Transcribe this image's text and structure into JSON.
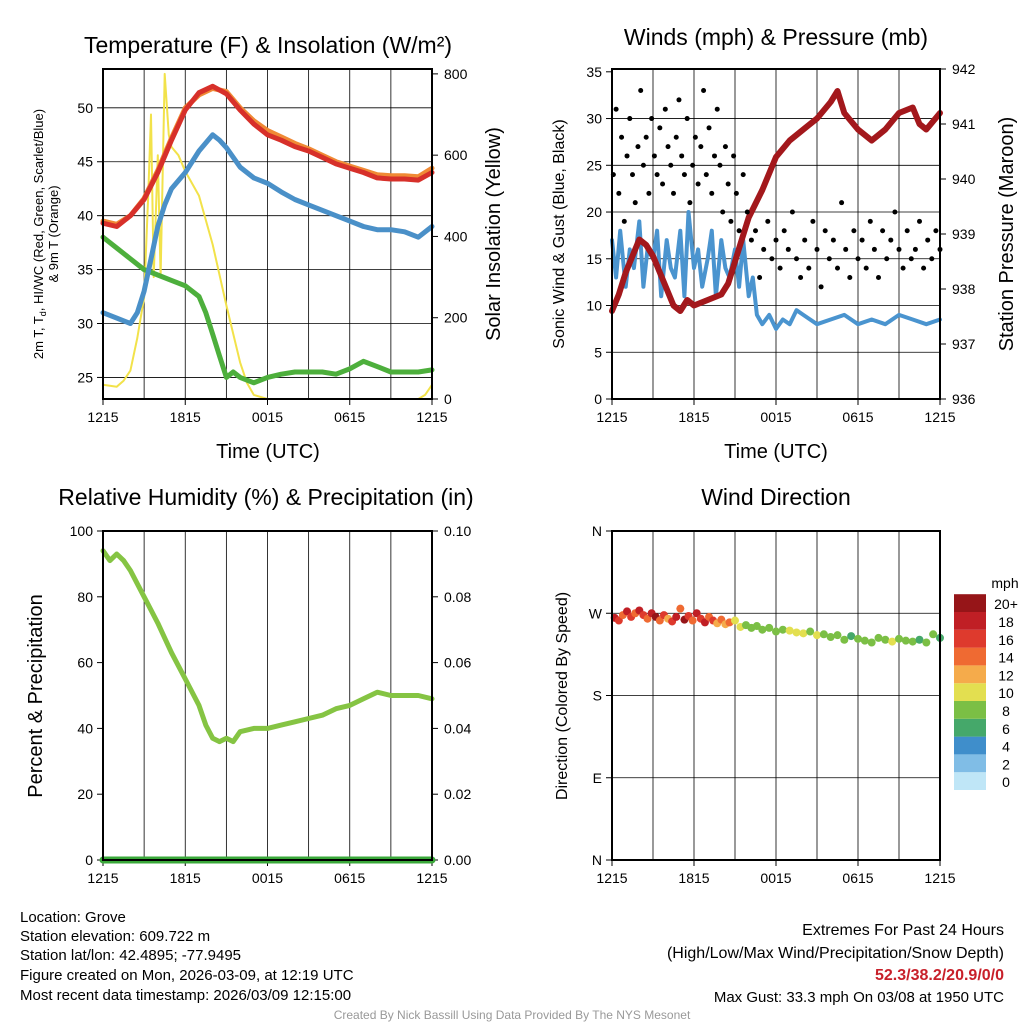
{
  "chart_data": [
    {
      "type": "line",
      "title": "Temperature (F) & Insolation (W/m²)",
      "xlabel": "Time (UTC)",
      "ylabel_parts": [
        "2m T, T",
        "d",
        ", HI/WC (Red, Green, Scarlet/Blue)"
      ],
      "ylabel2": "& 9m T (Orange)",
      "y2label": "Solar Insolation (Yellow)",
      "ylim": [
        23,
        53.6
      ],
      "y2lim": [
        0,
        812
      ],
      "yticks": [
        25,
        30,
        35,
        40,
        45,
        50
      ],
      "y2ticks": [
        0,
        200,
        400,
        600,
        800
      ],
      "xticks": [
        "1215",
        "1815",
        "0015",
        "0615",
        "1215"
      ],
      "series": [
        {
          "name": "Solar Insolation",
          "axis": "right",
          "color": "#f2e24a",
          "w": 2,
          "x": [
            0,
            1,
            1.5,
            2,
            2.5,
            3,
            3.3,
            3.5,
            3.7,
            4,
            4.2,
            4.5,
            4.8,
            5,
            5.5,
            6,
            7,
            8,
            9,
            10,
            10.5,
            11,
            12,
            18,
            23,
            23.5,
            24
          ],
          "y": [
            35,
            30,
            45,
            70,
            150,
            250,
            500,
            700,
            300,
            600,
            300,
            800,
            650,
            620,
            600,
            560,
            500,
            380,
            230,
            90,
            40,
            10,
            0,
            0,
            0,
            10,
            35
          ]
        },
        {
          "name": "Dew Point",
          "axis": "left",
          "color": "#4daf3c",
          "w": 5,
          "x": [
            0,
            1,
            2,
            3,
            4,
            5,
            6,
            7,
            7.5,
            8,
            8.5,
            9,
            9.5,
            10,
            11,
            12,
            13,
            14,
            15,
            16,
            17,
            18,
            19,
            20,
            21,
            22,
            23,
            24
          ],
          "y": [
            38,
            37,
            36,
            35,
            34.5,
            34,
            33.5,
            32.5,
            31,
            29,
            27,
            25,
            25.5,
            25,
            24.5,
            25,
            25.3,
            25.5,
            25.5,
            25.5,
            25.3,
            25.8,
            26.5,
            26,
            25.5,
            25.5,
            25.5,
            25.7
          ]
        },
        {
          "name": "Heat Index / Wind Chill",
          "axis": "left",
          "color": "#4a90c8",
          "w": 5,
          "x": [
            0,
            1,
            2,
            2.5,
            3,
            3.5,
            4,
            4.5,
            5,
            6,
            7,
            8,
            8.5,
            9,
            10,
            11,
            12,
            13,
            14,
            15,
            16,
            17,
            18,
            19,
            20,
            21,
            22,
            23,
            24
          ],
          "y": [
            31,
            30.5,
            30,
            31,
            33,
            36,
            39,
            41,
            42.5,
            44,
            46,
            47.5,
            47,
            46.3,
            44.5,
            43.5,
            43,
            42.2,
            41.5,
            41,
            40.5,
            40,
            39.5,
            39,
            38.7,
            38.7,
            38.5,
            38,
            39
          ]
        },
        {
          "name": "9m Temperature",
          "axis": "left",
          "color": "#f08a35",
          "w": 5,
          "x": [
            0,
            1,
            2,
            3,
            4,
            5,
            6,
            7,
            8,
            9,
            10,
            11,
            12,
            13,
            14,
            15,
            16,
            17,
            18,
            19,
            20,
            21,
            22,
            23,
            24
          ],
          "y": [
            39.5,
            39.2,
            40,
            41.6,
            44.2,
            47.2,
            50,
            51.2,
            51.8,
            51.5,
            50,
            48.8,
            47.9,
            47.3,
            46.7,
            46.2,
            45.6,
            45,
            44.6,
            44.2,
            43.8,
            43.7,
            43.7,
            43.6,
            44.4
          ]
        },
        {
          "name": "2m Temperature",
          "axis": "left",
          "color": "#d7302a",
          "w": 5,
          "x": [
            0,
            1,
            2,
            3,
            4,
            5,
            6,
            7,
            8,
            9,
            10,
            11,
            12,
            13,
            14,
            15,
            16,
            17,
            18,
            19,
            20,
            21,
            22,
            23,
            24
          ],
          "y": [
            39.3,
            39,
            40,
            41.5,
            44,
            47,
            49.8,
            51.4,
            52,
            51.3,
            49.8,
            48.5,
            47.5,
            47,
            46.4,
            46,
            45.4,
            44.8,
            44.4,
            44,
            43.5,
            43.4,
            43.4,
            43.3,
            44
          ]
        }
      ]
    },
    {
      "type": "line",
      "title": "Winds (mph) & Pressure (mb)",
      "xlabel": "Time (UTC)",
      "ylabel": "Sonic Wind & Gust (Blue, Black)",
      "y2label": "Station Pressure (Maroon)",
      "ylim": [
        0,
        35.3
      ],
      "y2lim": [
        936,
        942
      ],
      "yticks": [
        0,
        5,
        10,
        15,
        20,
        25,
        30,
        35
      ],
      "y2ticks": [
        936,
        937,
        938,
        939,
        940,
        941,
        942
      ],
      "xticks": [
        "1215",
        "1815",
        "0015",
        "0615",
        "1215"
      ],
      "series": [
        {
          "name": "Sonic Wind",
          "axis": "left",
          "color": "#4a94cf",
          "w": 4,
          "x": [
            0,
            0.3,
            0.6,
            1,
            1.3,
            1.6,
            2,
            2.3,
            2.6,
            3,
            3.3,
            3.6,
            4,
            4.3,
            4.6,
            5,
            5.3,
            5.6,
            6,
            6.3,
            6.6,
            7,
            7.3,
            7.6,
            8,
            8.3,
            8.6,
            9,
            9.3,
            9.6,
            10,
            10.3,
            10.6,
            11,
            11.5,
            12,
            12.5,
            13,
            13.5,
            14,
            15,
            16,
            17,
            18,
            19,
            20,
            21,
            22,
            23,
            24
          ],
          "y": [
            17,
            13,
            18,
            12,
            16,
            14,
            19,
            12,
            16,
            15,
            18,
            11,
            17,
            14,
            13,
            18,
            11,
            20,
            14,
            16,
            12,
            15,
            18,
            11,
            17,
            14,
            13,
            16,
            12,
            17,
            11,
            13,
            9,
            8,
            9,
            7.5,
            8.5,
            8,
            9.5,
            9,
            8,
            8.5,
            9,
            8,
            8.5,
            8,
            9,
            8.5,
            8,
            8.5
          ]
        },
        {
          "name": "Station Pressure",
          "axis": "right",
          "color": "#a3181c",
          "w": 6,
          "x": [
            0,
            0.5,
            1,
            2,
            2.5,
            3,
            4,
            4.5,
            5,
            5.5,
            6,
            7,
            8,
            8.5,
            9,
            9.5,
            10,
            11,
            12,
            13,
            14,
            15,
            16,
            16.5,
            17,
            18,
            19,
            20,
            21,
            22,
            22.5,
            23,
            24
          ],
          "y": [
            937.6,
            937.9,
            938.3,
            938.9,
            938.8,
            938.6,
            938.0,
            937.7,
            937.6,
            937.8,
            937.7,
            937.8,
            937.9,
            938.1,
            938.5,
            938.9,
            939.3,
            939.8,
            940.4,
            940.7,
            940.9,
            941.1,
            941.4,
            941.6,
            941.2,
            940.9,
            940.7,
            940.9,
            941.2,
            941.3,
            941.0,
            940.9,
            941.2
          ]
        }
      ],
      "gust_points": {
        "name": "Gust",
        "color": "#000",
        "x": [
          0.1,
          0.3,
          0.5,
          0.7,
          0.9,
          1.1,
          1.3,
          1.5,
          1.7,
          1.9,
          2.1,
          2.3,
          2.5,
          2.7,
          2.9,
          3.1,
          3.3,
          3.5,
          3.7,
          3.9,
          4.1,
          4.3,
          4.5,
          4.7,
          4.9,
          5.1,
          5.3,
          5.5,
          5.7,
          5.9,
          6.1,
          6.3,
          6.5,
          6.7,
          6.9,
          7.1,
          7.3,
          7.5,
          7.7,
          7.9,
          8.1,
          8.3,
          8.5,
          8.7,
          8.9,
          9.1,
          9.3,
          9.6,
          9.9,
          10.2,
          10.5,
          10.8,
          11.1,
          11.4,
          11.7,
          12,
          12.3,
          12.6,
          12.9,
          13.2,
          13.5,
          13.8,
          14.1,
          14.4,
          14.7,
          15,
          15.3,
          15.6,
          15.9,
          16.2,
          16.5,
          16.8,
          17.1,
          17.4,
          17.7,
          18,
          18.3,
          18.6,
          18.9,
          19.2,
          19.5,
          19.8,
          20.1,
          20.4,
          20.7,
          21,
          21.3,
          21.6,
          21.9,
          22.2,
          22.5,
          22.8,
          23.1,
          23.4,
          23.7,
          24
        ],
        "y": [
          24,
          31,
          22,
          28,
          19,
          26,
          30,
          24,
          21,
          27,
          33,
          25,
          28,
          22,
          30,
          26,
          24,
          29,
          23,
          31,
          27,
          25,
          22,
          28,
          32,
          26,
          24,
          30,
          21,
          25,
          28,
          23,
          27,
          33,
          24,
          29,
          22,
          26,
          31,
          25,
          20,
          27,
          23,
          19,
          26,
          22,
          18,
          24,
          20,
          17,
          18,
          13,
          16,
          19,
          15,
          17,
          14,
          18,
          16,
          20,
          15,
          13,
          17,
          14,
          19,
          16,
          12,
          18,
          15,
          17,
          14,
          21,
          16,
          13,
          18,
          15,
          17,
          14,
          19,
          16,
          13,
          18,
          15,
          17,
          20,
          16,
          14,
          18,
          15,
          16,
          19,
          14,
          17,
          15,
          18,
          16
        ]
      }
    },
    {
      "type": "line",
      "title": "Relative Humidity (%) & Precipitation (in)",
      "ylabel": "Percent & Precipitation",
      "ylim": [
        0,
        100
      ],
      "y2lim": [
        0,
        0.1
      ],
      "yticks": [
        0,
        20,
        40,
        60,
        80,
        100
      ],
      "y2ticks": [
        "0.00",
        "0.02",
        "0.04",
        "0.06",
        "0.08",
        "0.10"
      ],
      "xticks": [
        "1215",
        "1815",
        "0015",
        "0615",
        "1215"
      ],
      "series": [
        {
          "name": "Precipitation",
          "axis": "right",
          "color": "#3aa83a",
          "w": 7,
          "x": [
            0,
            24
          ],
          "y": [
            0,
            0
          ]
        },
        {
          "name": "Relative Humidity",
          "axis": "left",
          "color": "#85c443",
          "w": 5,
          "x": [
            0,
            0.5,
            1,
            1.5,
            2,
            3,
            3.5,
            4,
            5,
            6,
            7,
            7.5,
            8,
            8.5,
            9,
            9.5,
            10,
            11,
            12,
            13,
            14,
            15,
            16,
            17,
            18,
            19,
            20,
            21,
            22,
            23,
            24
          ],
          "y": [
            94,
            91,
            93,
            91,
            88,
            80,
            76,
            72,
            63,
            55,
            47,
            41,
            37,
            36,
            37,
            36,
            39,
            40,
            40,
            41,
            42,
            43,
            44,
            46,
            47,
            49,
            51,
            50,
            50,
            50,
            49
          ]
        }
      ]
    },
    {
      "type": "scatter",
      "title": "Wind Direction",
      "ylabel": "Direction (Colored By Speed)",
      "ylim": [
        0,
        360
      ],
      "yticks": [
        "N",
        "E",
        "S",
        "W",
        "N"
      ],
      "xticks": [
        "1215",
        "1815",
        "0015",
        "0615",
        "1215"
      ],
      "colorbar": {
        "title": "mph",
        "labels": [
          "0",
          "2",
          "4",
          "6",
          "8",
          "10",
          "12",
          "14",
          "16",
          "18",
          "20+"
        ],
        "colors": [
          "#bfe6f7",
          "#80bde6",
          "#3f8ecb",
          "#45a86a",
          "#7bbf45",
          "#e3df50",
          "#f5ab4b",
          "#ef6a32",
          "#de3a2d",
          "#c01f25",
          "#961518"
        ]
      },
      "points": {
        "x": [
          0.2,
          0.5,
          0.8,
          1.1,
          1.4,
          1.7,
          2,
          2.3,
          2.6,
          2.9,
          3.2,
          3.5,
          3.8,
          4.1,
          4.4,
          4.7,
          5,
          5.3,
          5.6,
          5.9,
          6.2,
          6.5,
          6.8,
          7.1,
          7.4,
          7.7,
          8,
          8.3,
          8.6,
          9,
          9.4,
          9.8,
          10.2,
          10.6,
          11,
          11.5,
          12,
          12.5,
          13,
          13.5,
          14,
          14.5,
          15,
          15.5,
          16,
          16.5,
          17,
          17.5,
          18,
          18.5,
          19,
          19.5,
          20,
          20.5,
          21,
          21.5,
          22,
          22.5,
          23,
          23.5,
          24
        ],
        "deg": [
          265,
          262,
          268,
          272,
          266,
          270,
          273,
          268,
          264,
          270,
          266,
          262,
          268,
          264,
          261,
          266,
          275,
          263,
          267,
          262,
          270,
          264,
          260,
          266,
          262,
          259,
          263,
          258,
          260,
          262,
          255,
          257,
          254,
          256,
          252,
          254,
          250,
          252,
          251,
          249,
          248,
          250,
          246,
          247,
          244,
          246,
          241,
          245,
          242,
          240,
          238,
          243,
          241,
          239,
          242,
          240,
          239,
          241,
          238,
          247,
          243
        ],
        "mph": [
          18,
          16,
          14,
          19,
          17,
          15,
          19,
          16,
          14,
          18,
          20,
          15,
          17,
          13,
          16,
          19,
          14,
          21,
          17,
          15,
          18,
          16,
          19,
          14,
          17,
          13,
          15,
          12,
          14,
          11,
          10,
          9,
          8,
          9,
          8,
          8,
          8,
          9,
          10,
          11,
          10,
          9,
          10,
          8,
          8,
          8,
          9,
          7,
          8,
          8,
          8,
          9,
          8,
          11,
          8,
          8,
          8,
          7,
          8,
          8,
          7
        ]
      }
    }
  ],
  "footer": {
    "location": "Location: Grove",
    "elevation": "Station elevation: 609.722 m",
    "latlon": "Station lat/lon: 42.4895; -77.9495",
    "created": "Figure created on Mon, 2026-03-09, at 12:19 UTC",
    "recent": "Most recent data timestamp: 2026/03/09 12:15:00",
    "extremes_title": "Extremes For Past 24 Hours",
    "extremes_sub": "(High/Low/Max Wind/Precipitation/Snow Depth)",
    "extremes_values": "52.3/38.2/20.9/0/0",
    "max_gust": "Max Gust: 33.3 mph On 03/08 at 1950 UTC",
    "credit": "Created By Nick Bassill Using Data Provided By The NYS Mesonet"
  }
}
